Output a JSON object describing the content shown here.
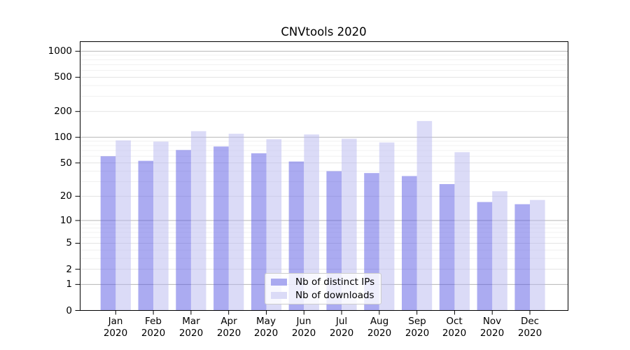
{
  "title": "CNVtools 2020",
  "chart_data": {
    "type": "bar",
    "title": "CNVtools 2020",
    "categories": [
      "Jan",
      "Feb",
      "Mar",
      "Apr",
      "May",
      "Jun",
      "Jul",
      "Aug",
      "Sep",
      "Oct",
      "Nov",
      "Dec"
    ],
    "category_year": "2020",
    "series": [
      {
        "name": "Nb of distinct IPs",
        "color": "rgba(88,88,228,0.5)",
        "legend_color": "#aaaaf0",
        "values": [
          60,
          53,
          71,
          78,
          65,
          52,
          40,
          38,
          35,
          28,
          17,
          16
        ]
      },
      {
        "name": "Nb of downloads",
        "color": "rgba(183,183,240,0.5)",
        "legend_color": "#dbdbf7",
        "values": [
          92,
          89,
          118,
          110,
          95,
          108,
          96,
          87,
          155,
          67,
          23,
          18
        ]
      }
    ],
    "xlabel": "",
    "ylabel": "",
    "y_scale": "log10(1+x)",
    "ylim": [
      0,
      1294
    ],
    "y_ticks": [
      1000,
      500,
      200,
      100,
      50,
      20,
      10,
      5,
      2,
      1,
      0
    ],
    "y_major_grid": [
      1,
      10,
      100,
      1000
    ],
    "y_minor_grid": [
      3,
      4,
      6,
      7,
      8,
      9,
      30,
      40,
      60,
      70,
      80,
      90,
      300,
      400,
      600,
      700,
      800,
      900
    ],
    "grid": "horizontal",
    "legend_position": "lower center",
    "colors": {
      "major_grid": "#b5b5b5",
      "labeled_grid": "#e3e3e3",
      "minor_grid": "#f0f0f0",
      "spine": "#000000",
      "legend_border": "#cccccc"
    }
  }
}
